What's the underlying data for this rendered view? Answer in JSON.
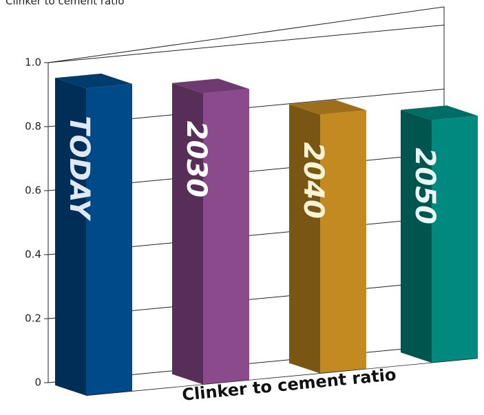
{
  "chart_data": {
    "type": "bar3d",
    "title": "Clinker to cement ratio",
    "xlabel": "Clinker to cement ratio",
    "categories": [
      "TODAY",
      "2030",
      "2040",
      "2050"
    ],
    "values": [
      0.95,
      0.9,
      0.8,
      0.75
    ],
    "colors": [
      "#004a8a",
      "#8a4a8c",
      "#c48a22",
      "#00897f"
    ],
    "label_colors": [
      "#dfe9f5",
      "#ffffff",
      "#fff3d6",
      "#e8f6f4"
    ],
    "ylim": [
      0,
      1.0
    ],
    "yticks": [
      0,
      0.2,
      0.4,
      0.6,
      0.8,
      {
        "value": 1.0,
        "label": "1.0"
      }
    ],
    "grid": true
  }
}
